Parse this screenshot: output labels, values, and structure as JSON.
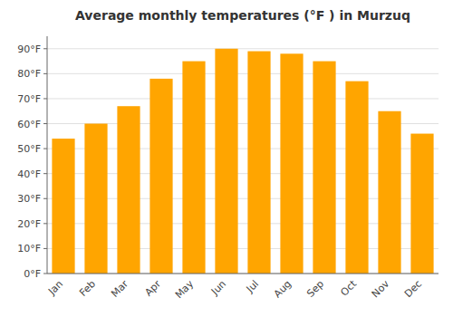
{
  "chart_data": {
    "type": "bar",
    "title": "Average monthly temperatures (°F ) in Murzuq",
    "categories": [
      "Jan",
      "Feb",
      "Mar",
      "Apr",
      "May",
      "Jun",
      "Jul",
      "Aug",
      "Sep",
      "Oct",
      "Nov",
      "Dec"
    ],
    "values": [
      54,
      60,
      67,
      78,
      85,
      90,
      89,
      88,
      85,
      77,
      65,
      56
    ],
    "color": "#FFA500",
    "ylim": [
      0,
      95
    ],
    "yticks": [
      {
        "value": 0,
        "label": "0°F"
      },
      {
        "value": 10,
        "label": "10°F"
      },
      {
        "value": 20,
        "label": "20°F"
      },
      {
        "value": 30,
        "label": "30°F"
      },
      {
        "value": 40,
        "label": "40°F"
      },
      {
        "value": 50,
        "label": "50°F"
      },
      {
        "value": 60,
        "label": "60°F"
      },
      {
        "value": 70,
        "label": "70°F"
      },
      {
        "value": 80,
        "label": "80°F"
      },
      {
        "value": 90,
        "label": "90°F"
      }
    ],
    "grid": true
  }
}
